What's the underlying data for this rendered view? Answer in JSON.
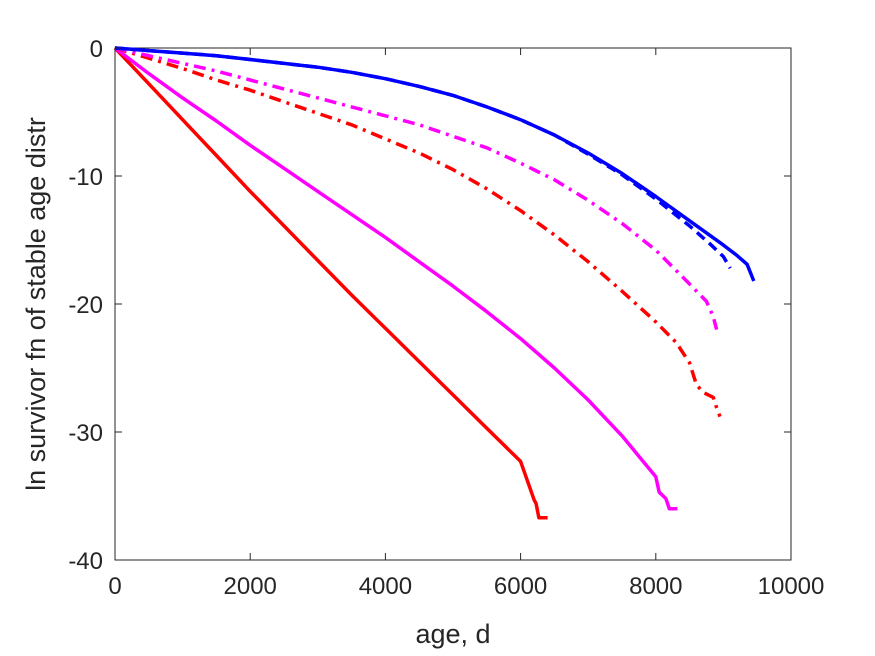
{
  "chart_data": {
    "type": "line",
    "title": "",
    "xlabel": "age, d",
    "ylabel": "ln survivor fn of stable age distr",
    "xlim": [
      0,
      10000
    ],
    "ylim": [
      -40,
      0
    ],
    "xticks": [
      0,
      2000,
      4000,
      6000,
      8000,
      10000
    ],
    "xtick_labels": [
      "0",
      "2000",
      "4000",
      "6000",
      "8000",
      "10000"
    ],
    "yticks": [
      -40,
      -30,
      -20,
      -10,
      0
    ],
    "ytick_labels": [
      "-40",
      "-30",
      "-20",
      "-10",
      "0"
    ],
    "grid": false,
    "legend": "none",
    "series": [
      {
        "color": "#ff0000",
        "style": "solid",
        "points": [
          [
            0,
            0
          ],
          [
            500,
            -2.8
          ],
          [
            1000,
            -5.6
          ],
          [
            1500,
            -8.4
          ],
          [
            2000,
            -11.2
          ],
          [
            2500,
            -13.9
          ],
          [
            3000,
            -16.6
          ],
          [
            3500,
            -19.3
          ],
          [
            4000,
            -21.9
          ],
          [
            4500,
            -24.5
          ],
          [
            5000,
            -27.1
          ],
          [
            5500,
            -29.7
          ],
          [
            6000,
            -32.3
          ],
          [
            6200,
            -35.3
          ],
          [
            6230,
            -35.6
          ],
          [
            6270,
            -36.7
          ],
          [
            6400,
            -36.7
          ]
        ]
      },
      {
        "color": "#ff00ff",
        "style": "solid",
        "points": [
          [
            0,
            0
          ],
          [
            500,
            -2.0
          ],
          [
            1000,
            -3.9
          ],
          [
            1500,
            -5.7
          ],
          [
            2000,
            -7.6
          ],
          [
            2500,
            -9.4
          ],
          [
            3000,
            -11.2
          ],
          [
            3500,
            -13.0
          ],
          [
            4000,
            -14.8
          ],
          [
            4500,
            -16.7
          ],
          [
            5000,
            -18.6
          ],
          [
            5500,
            -20.6
          ],
          [
            6000,
            -22.7
          ],
          [
            6500,
            -25.0
          ],
          [
            7000,
            -27.5
          ],
          [
            7500,
            -30.3
          ],
          [
            8000,
            -33.5
          ],
          [
            8050,
            -34.7
          ],
          [
            8150,
            -35.2
          ],
          [
            8200,
            -36.0
          ],
          [
            8320,
            -36.0
          ]
        ]
      },
      {
        "color": "#ff0000",
        "style": "dashdot",
        "points": [
          [
            0,
            0
          ],
          [
            500,
            -0.8
          ],
          [
            1000,
            -1.6
          ],
          [
            1500,
            -2.5
          ],
          [
            2000,
            -3.3
          ],
          [
            2500,
            -4.2
          ],
          [
            3000,
            -5.1
          ],
          [
            3500,
            -6.0
          ],
          [
            4000,
            -7.1
          ],
          [
            4500,
            -8.2
          ],
          [
            5000,
            -9.5
          ],
          [
            5500,
            -11.0
          ],
          [
            6000,
            -12.7
          ],
          [
            6500,
            -14.6
          ],
          [
            7000,
            -16.7
          ],
          [
            7500,
            -19.0
          ],
          [
            8000,
            -21.4
          ],
          [
            8300,
            -23.0
          ],
          [
            8500,
            -24.6
          ],
          [
            8600,
            -26.3
          ],
          [
            8700,
            -26.9
          ],
          [
            8850,
            -27.3
          ],
          [
            8900,
            -28.1
          ],
          [
            8950,
            -28.8
          ]
        ]
      },
      {
        "color": "#ff00ff",
        "style": "dashdot",
        "points": [
          [
            0,
            0
          ],
          [
            500,
            -0.6
          ],
          [
            1000,
            -1.2
          ],
          [
            1500,
            -1.8
          ],
          [
            2000,
            -2.5
          ],
          [
            2500,
            -3.2
          ],
          [
            3000,
            -3.9
          ],
          [
            3500,
            -4.6
          ],
          [
            4000,
            -5.3
          ],
          [
            4500,
            -6.0
          ],
          [
            5000,
            -6.9
          ],
          [
            5500,
            -7.8
          ],
          [
            6000,
            -9.0
          ],
          [
            6500,
            -10.3
          ],
          [
            7000,
            -11.9
          ],
          [
            7500,
            -13.7
          ],
          [
            8000,
            -15.8
          ],
          [
            8400,
            -17.9
          ],
          [
            8750,
            -19.8
          ],
          [
            8850,
            -21.0
          ],
          [
            8900,
            -22.0
          ]
        ]
      },
      {
        "color": "#0000ff",
        "style": "solid",
        "points": [
          [
            0,
            0
          ],
          [
            500,
            -0.2
          ],
          [
            1000,
            -0.4
          ],
          [
            1500,
            -0.6
          ],
          [
            2000,
            -0.9
          ],
          [
            2500,
            -1.2
          ],
          [
            3000,
            -1.5
          ],
          [
            3500,
            -1.9
          ],
          [
            4000,
            -2.4
          ],
          [
            4500,
            -3.0
          ],
          [
            5000,
            -3.7
          ],
          [
            5500,
            -4.6
          ],
          [
            6000,
            -5.6
          ],
          [
            6500,
            -6.8
          ],
          [
            7000,
            -8.2
          ],
          [
            7500,
            -9.8
          ],
          [
            8000,
            -11.6
          ],
          [
            8500,
            -13.5
          ],
          [
            9000,
            -15.4
          ],
          [
            9200,
            -16.2
          ],
          [
            9350,
            -16.9
          ],
          [
            9450,
            -18.2
          ]
        ]
      },
      {
        "color": "#0000ff",
        "style": "dashed",
        "points": [
          [
            0,
            0
          ],
          [
            500,
            -0.2
          ],
          [
            1000,
            -0.4
          ],
          [
            1500,
            -0.6
          ],
          [
            2000,
            -0.9
          ],
          [
            2500,
            -1.2
          ],
          [
            3000,
            -1.5
          ],
          [
            3500,
            -1.9
          ],
          [
            4000,
            -2.4
          ],
          [
            4500,
            -3.0
          ],
          [
            5000,
            -3.7
          ],
          [
            5500,
            -4.6
          ],
          [
            6000,
            -5.6
          ],
          [
            6500,
            -6.8
          ],
          [
            7000,
            -8.3
          ],
          [
            7500,
            -9.9
          ],
          [
            8000,
            -11.8
          ],
          [
            8500,
            -13.9
          ],
          [
            8800,
            -15.3
          ],
          [
            9000,
            -16.3
          ],
          [
            9100,
            -17.2
          ]
        ]
      }
    ]
  }
}
